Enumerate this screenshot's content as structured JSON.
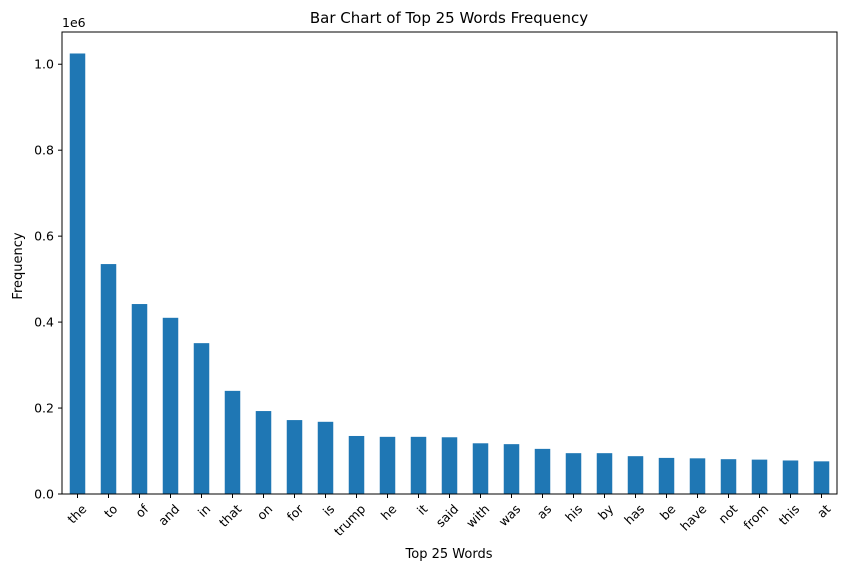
{
  "chart_data": {
    "type": "bar",
    "title": "Bar Chart of Top 25 Words Frequency",
    "xlabel": "Top 25 Words",
    "ylabel": "Frequency",
    "y_offset_label": "1e6",
    "y_scale": 1000000,
    "ylim": [
      0,
      1075000
    ],
    "y_ticks": [
      0,
      200000,
      400000,
      600000,
      800000,
      1000000
    ],
    "y_tick_labels": [
      "0.0",
      "0.2",
      "0.4",
      "0.6",
      "0.8",
      "1.0"
    ],
    "x_tick_rotation_deg": 45,
    "grid": false,
    "legend": "none",
    "bar_color": "#1f77b4",
    "categories": [
      "the",
      "to",
      "of",
      "and",
      "in",
      "that",
      "on",
      "for",
      "is",
      "trump",
      "he",
      "it",
      "said",
      "with",
      "was",
      "as",
      "his",
      "by",
      "has",
      "be",
      "have",
      "not",
      "from",
      "this",
      "at"
    ],
    "values": [
      1025000,
      535000,
      442000,
      410000,
      351000,
      240000,
      193000,
      172000,
      168000,
      135000,
      133000,
      133000,
      132000,
      118000,
      116000,
      105000,
      95000,
      95000,
      88000,
      84000,
      83000,
      81000,
      80000,
      78000,
      76000
    ]
  }
}
